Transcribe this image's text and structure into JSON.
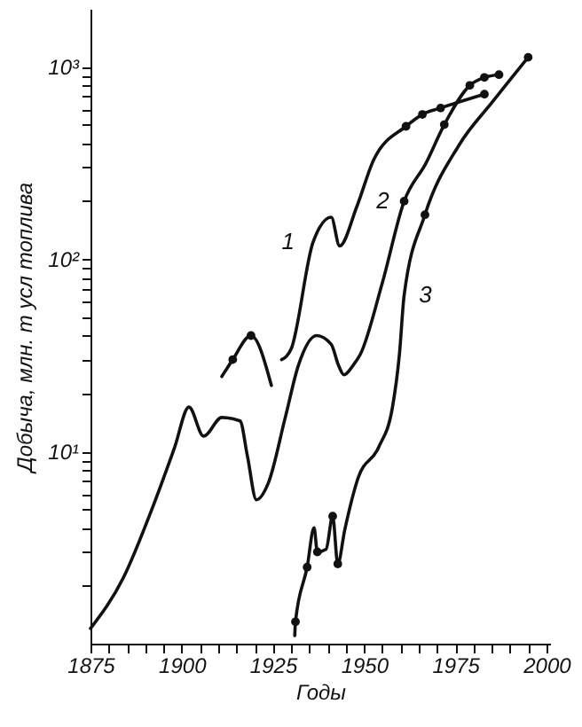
{
  "chart_data": {
    "type": "line",
    "xlabel": "Годы",
    "ylabel": "Добыча, млн. т усл топлива",
    "xlim": [
      1875,
      2001
    ],
    "ylim": [
      1,
      2000
    ],
    "log": "y",
    "grid": false,
    "marker": "none",
    "xticks": [
      1875,
      {
        "value": 1880,
        "label": null
      },
      {
        "value": 1885,
        "label": null
      },
      {
        "value": 1890,
        "label": null
      },
      {
        "value": 1895,
        "label": null
      },
      1900,
      {
        "value": 1905,
        "label": null
      },
      {
        "value": 1910,
        "label": null
      },
      {
        "value": 1915,
        "label": null
      },
      {
        "value": 1920,
        "label": null
      },
      1925,
      {
        "value": 1930,
        "label": null
      },
      {
        "value": 1935,
        "label": null
      },
      {
        "value": 1940,
        "label": null
      },
      {
        "value": 1945,
        "label": null
      },
      1950,
      {
        "value": 1955,
        "label": null
      },
      {
        "value": 1960,
        "label": null
      },
      {
        "value": 1965,
        "label": null
      },
      {
        "value": 1970,
        "label": null
      },
      1975,
      {
        "value": 1980,
        "label": null
      },
      {
        "value": 1985,
        "label": null
      },
      {
        "value": 1990,
        "label": null
      },
      {
        "value": 1995,
        "label": null
      },
      2000
    ],
    "yticks": [
      {
        "value": 2,
        "label": null
      },
      {
        "value": 3,
        "label": null
      },
      {
        "value": 4,
        "label": null
      },
      {
        "value": 5,
        "label": null
      },
      {
        "value": 6,
        "label": null
      },
      {
        "value": 7,
        "label": null
      },
      {
        "value": 8,
        "label": null
      },
      {
        "value": 9,
        "label": null
      },
      {
        "value": 10,
        "label": "10¹"
      },
      {
        "value": 20,
        "label": null
      },
      {
        "value": 30,
        "label": null
      },
      {
        "value": 40,
        "label": null
      },
      {
        "value": 50,
        "label": null
      },
      {
        "value": 60,
        "label": null
      },
      {
        "value": 70,
        "label": null
      },
      {
        "value": 80,
        "label": null
      },
      {
        "value": 90,
        "label": null
      },
      {
        "value": 100,
        "label": "10²"
      },
      {
        "value": 200,
        "label": null
      },
      {
        "value": 300,
        "label": null
      },
      {
        "value": 400,
        "label": null
      },
      {
        "value": 500,
        "label": null
      },
      {
        "value": 600,
        "label": null
      },
      {
        "value": 700,
        "label": null
      },
      {
        "value": 800,
        "label": null
      },
      {
        "value": 900,
        "label": null
      },
      {
        "value": 1000,
        "label": "10³"
      }
    ],
    "series": [
      {
        "name": "1",
        "color": "#111111",
        "x": [
          1911,
          1914,
          1919,
          1924.6,
          1926,
          1927.4,
          1930,
          1936,
          1941,
          1943.3,
          1948,
          1952.7,
          1961.5,
          1966,
          1971,
          1983
        ],
        "values": [
          24.5,
          30,
          40,
          22,
          null,
          30,
          34,
          122,
          165,
          117,
          187,
          330,
          490,
          565,
          610,
          720
        ]
      },
      {
        "name": "2",
        "color": "#111111",
        "x": [
          1875,
          1884,
          1892,
          1898,
          1902,
          1906,
          1911,
          1916,
          1918,
          1920.5,
          1923.7,
          1928.4,
          1932,
          1937,
          1941,
          1943,
          1944.5,
          1947,
          1949,
          1955,
          1961,
          1967,
          1972,
          1979,
          1983,
          1987
        ],
        "values": [
          1.2,
          2.2,
          5.1,
          10.4,
          17,
          12,
          15,
          14.4,
          9.5,
          5.6,
          6.8,
          15,
          28,
          40,
          36,
          28,
          25,
          28,
          32,
          75,
          200,
          316,
          500,
          800,
          880,
          910
        ]
      },
      {
        "name": "3",
        "color": "#111111",
        "x": [
          1931,
          1931.2,
          1934.4,
          1936.3,
          1937.2,
          1939.6,
          1941.4,
          1942.8,
          1944.7,
          1948.4,
          1954,
          1957.8,
          1959.7,
          1961,
          1966.7,
          1976,
          1985.3,
          1995
        ],
        "values": [
          1.1,
          1.3,
          2.5,
          4,
          3,
          3.1,
          4.6,
          2.6,
          3.9,
          7.3,
          10.5,
          17,
          32,
          65,
          170,
          390,
          660,
          1120
        ]
      },
      {
        "type": "scatter",
        "color": "#111111",
        "marker": "circle",
        "x": [
          1914,
          1919,
          1961.5,
          1966,
          1971,
          1983,
          1961,
          1972,
          1979,
          1983,
          1987,
          1931.2,
          1934.4,
          1937.2,
          1941.4,
          1942.8,
          1966.7,
          1995
        ],
        "values": [
          30,
          40,
          490,
          565,
          610,
          720,
          200,
          500,
          800,
          880,
          910,
          1.3,
          2.5,
          3,
          4.6,
          2.6,
          170,
          1120
        ]
      }
    ]
  }
}
